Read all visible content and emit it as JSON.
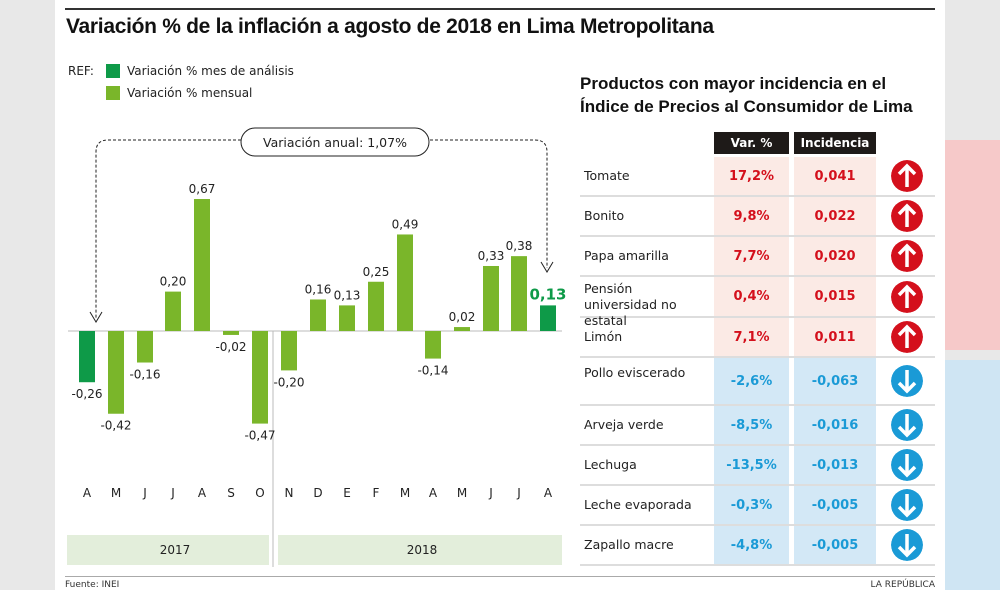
{
  "title": "Variación % de la inflación a agosto de 2018 en Lima Metropolitana",
  "legend": {
    "ref": "REF:",
    "items": [
      {
        "label": "Variación % mes de análisis",
        "color": "#0e9a48"
      },
      {
        "label": "Variación % mensual",
        "color": "#7ab62a"
      }
    ]
  },
  "annual": "Variación anual: 1,07%",
  "chart_data": {
    "type": "bar",
    "categories": [
      "A",
      "M",
      "J",
      "J",
      "A",
      "S",
      "O",
      "N",
      "D",
      "E",
      "F",
      "M",
      "A",
      "M",
      "J",
      "J",
      "A"
    ],
    "values": [
      -0.26,
      -0.42,
      -0.16,
      0.2,
      0.67,
      -0.02,
      -0.47,
      -0.2,
      0.16,
      0.13,
      0.25,
      0.49,
      -0.14,
      0.02,
      0.33,
      0.38,
      0.13
    ],
    "labels": [
      "-0,26",
      "-0,42",
      "-0,16",
      "0,20",
      "0,67",
      "-0,02",
      "-0,47",
      "-0,20",
      "0,16",
      "0,13",
      "0,25",
      "0,49",
      "-0,14",
      "0,02",
      "0,33",
      "0,38",
      "0,13"
    ],
    "highlighted": [
      0,
      16
    ],
    "years": [
      "2017",
      "2018"
    ]
  },
  "table": {
    "title1": "Productos con mayor incidencia en el",
    "title2": "Índice de Precios al Consumidor de Lima",
    "headers": [
      "Var. %",
      "Incidencia"
    ],
    "rows": [
      {
        "name": "Tomate",
        "var": "17,2%",
        "inc": "0,041",
        "dir": "up"
      },
      {
        "name": "Bonito",
        "var": "9,8%",
        "inc": "0,022",
        "dir": "up"
      },
      {
        "name": "Papa amarilla",
        "var": "7,7%",
        "inc": "0,020",
        "dir": "up"
      },
      {
        "name": "Pensión universidad no estatal",
        "var": "0,4%",
        "inc": "0,015",
        "dir": "up"
      },
      {
        "name": "Limón",
        "var": "7,1%",
        "inc": "0,011",
        "dir": "up"
      },
      {
        "name": "Pollo eviscerado",
        "var": "-2,6%",
        "inc": "-0,063",
        "dir": "down"
      },
      {
        "name": "Arveja verde",
        "var": "-8,5%",
        "inc": "-0,016",
        "dir": "down"
      },
      {
        "name": "Lechuga",
        "var": "-13,5%",
        "inc": "-0,013",
        "dir": "down"
      },
      {
        "name": "Leche evaporada",
        "var": "-0,3%",
        "inc": "-0,005",
        "dir": "down"
      },
      {
        "name": "Zapallo macre",
        "var": "-4,8%",
        "inc": "-0,005",
        "dir": "down"
      }
    ]
  },
  "colors": {
    "up": "#d4101c",
    "down": "#1a9ad6",
    "up_bg": "#fbeae5",
    "down_bg": "#d3e8f6"
  },
  "footer": {
    "source": "Fuente: INEI",
    "brand": "LA REPÚBLICA"
  }
}
